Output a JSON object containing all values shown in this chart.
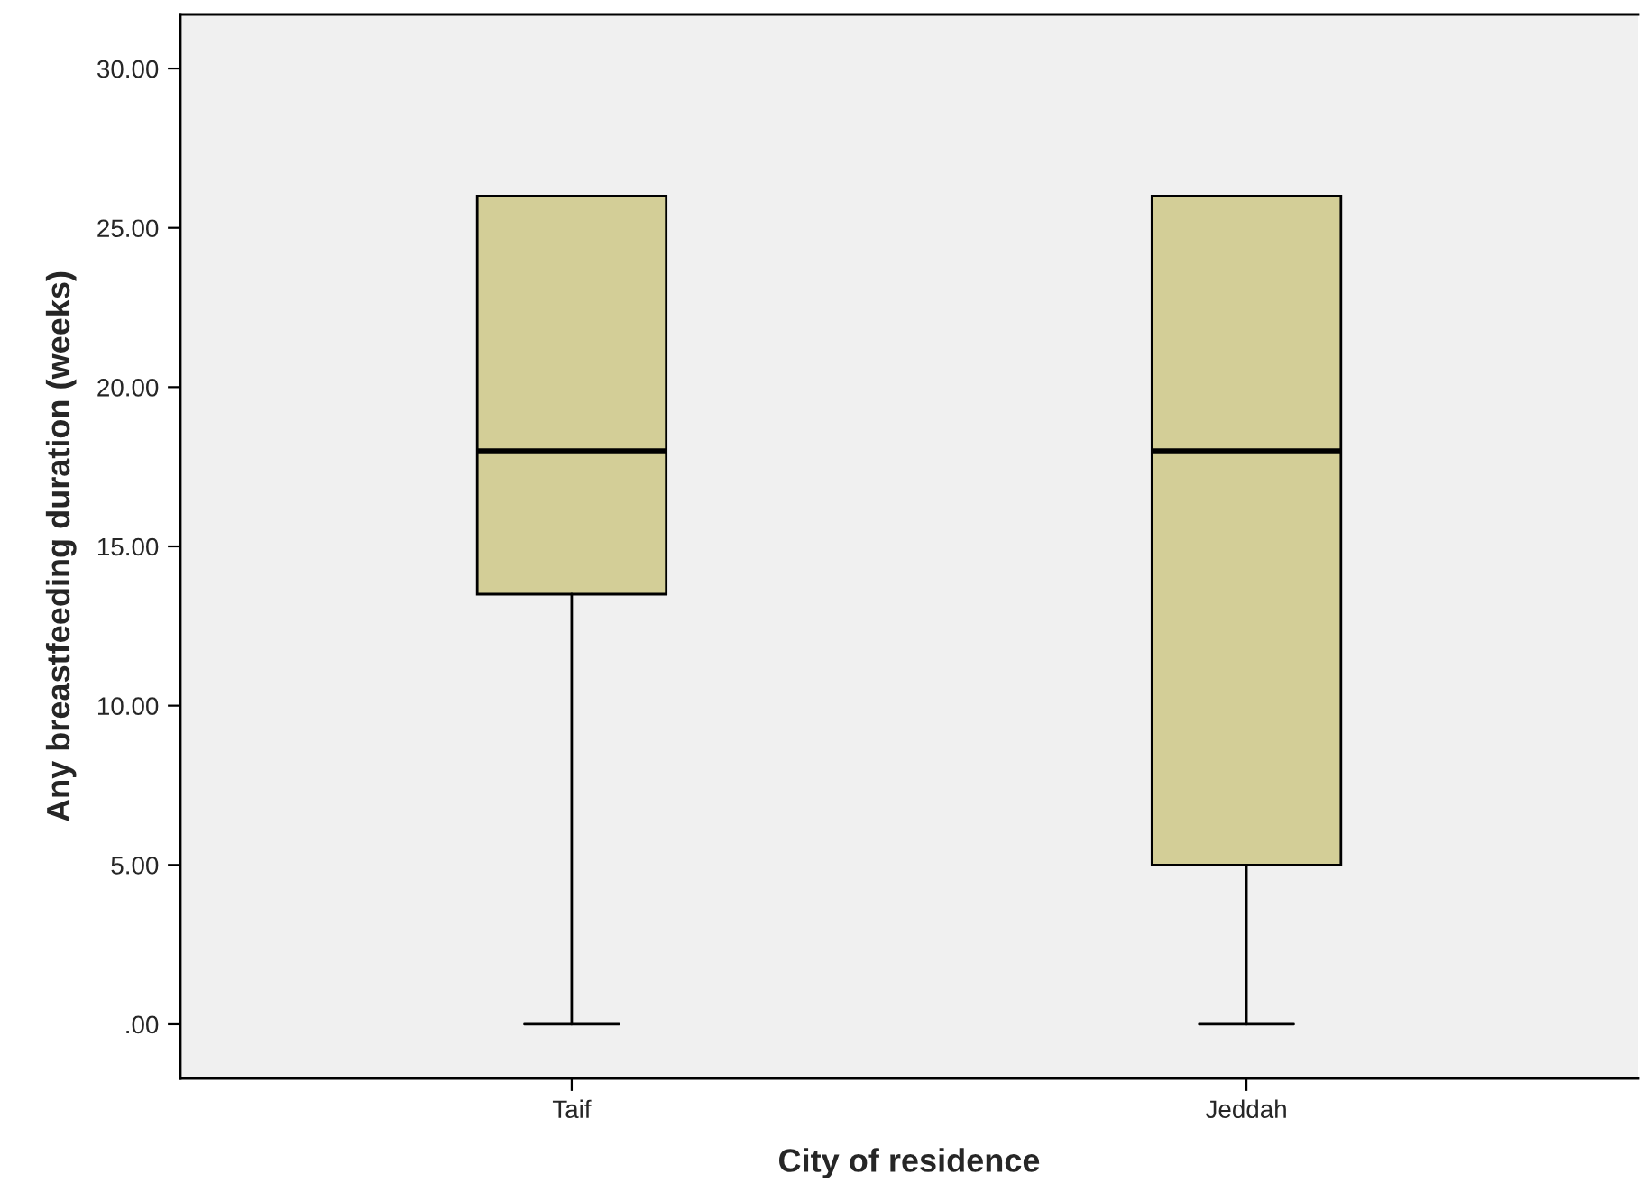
{
  "chart_data": {
    "type": "box",
    "xlabel": "City of residence",
    "ylabel": "Any breastfeeding duration (weeks)",
    "categories": [
      "Taif",
      "Jeddah"
    ],
    "boxes": [
      {
        "low": 0,
        "q1": 13.5,
        "median": 18,
        "q3": 26,
        "high": 26
      },
      {
        "low": 0,
        "q1": 5,
        "median": 18,
        "q3": 26,
        "high": 26
      }
    ],
    "color": "#d3ce97",
    "ylim": [
      -1.7,
      31.7
    ],
    "yticks": [
      {
        "value": 0,
        "label": ".00"
      },
      {
        "value": 5,
        "label": "5.00"
      },
      {
        "value": 10,
        "label": "10.00"
      },
      {
        "value": 15,
        "label": "15.00"
      },
      {
        "value": 20,
        "label": "20.00"
      },
      {
        "value": 25,
        "label": "25.00"
      },
      {
        "value": 30,
        "label": "30.00"
      }
    ]
  }
}
